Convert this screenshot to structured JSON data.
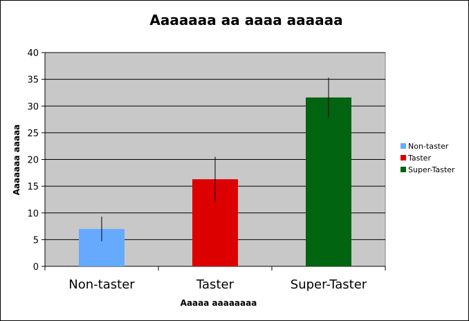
{
  "chart_data": {
    "type": "bar",
    "title": "Aaaaaaa aa aaaa aaaaaa",
    "xlabel": "Aaaaa aaaaaaaa",
    "ylabel": "Aaaaaaa aaaaa",
    "categories": [
      "Non-taster",
      "Taster",
      "Super-Taster"
    ],
    "values": [
      7.0,
      16.3,
      31.6
    ],
    "error": [
      2.3,
      4.2,
      3.7
    ],
    "colors": [
      "#66aaff",
      "#dd0000",
      "#006411"
    ],
    "ylim": [
      0,
      40
    ],
    "yticks": [
      0,
      5,
      10,
      15,
      20,
      25,
      30,
      35,
      40
    ],
    "grid": true,
    "plot_background": "#c8c8c8",
    "legend": {
      "position": "right",
      "entries": [
        "Non-taster",
        "Taster",
        "Super-Taster"
      ]
    }
  }
}
